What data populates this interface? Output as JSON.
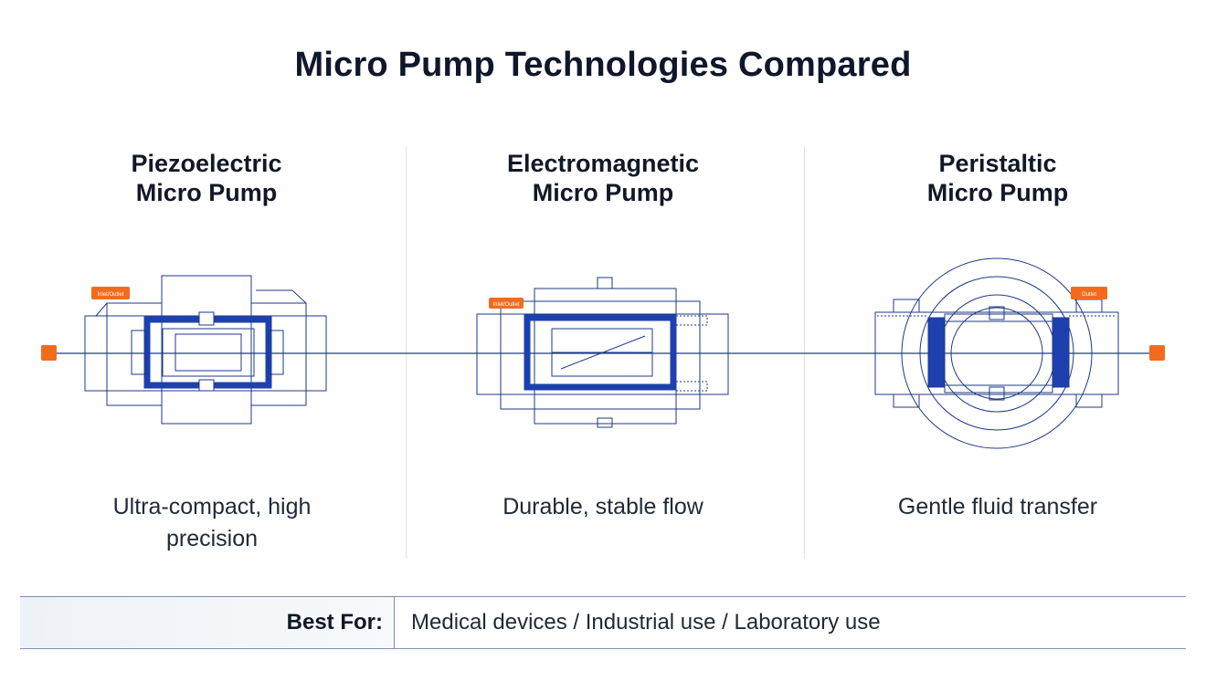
{
  "title": "Micro Pump Technologies Compared",
  "columns": [
    {
      "title_line1": "Piezoelectric",
      "title_line2": "Micro Pump",
      "desc_line1": "Ultra-compact, high",
      "desc_line2": "precision"
    },
    {
      "title_line1": "Electromagnetic",
      "title_line2": "Micro Pump",
      "desc_line1": "Durable, stable flow",
      "desc_line2": ""
    },
    {
      "title_line1": "Peristaltic",
      "title_line2": "Micro Pump",
      "desc_line1": "Gentle fluid transfer",
      "desc_line2": ""
    }
  ],
  "diagram_tags": [
    "Inlet/Outlet",
    "Inlet/Outlet",
    "Outlet"
  ],
  "best_for": {
    "label": "Best For:",
    "value": "Medical devices / Industrial use / Laboratory use"
  },
  "colors": {
    "line": "#1e3a8a",
    "accent": "#1e40af",
    "connector": "#f26b1d"
  }
}
